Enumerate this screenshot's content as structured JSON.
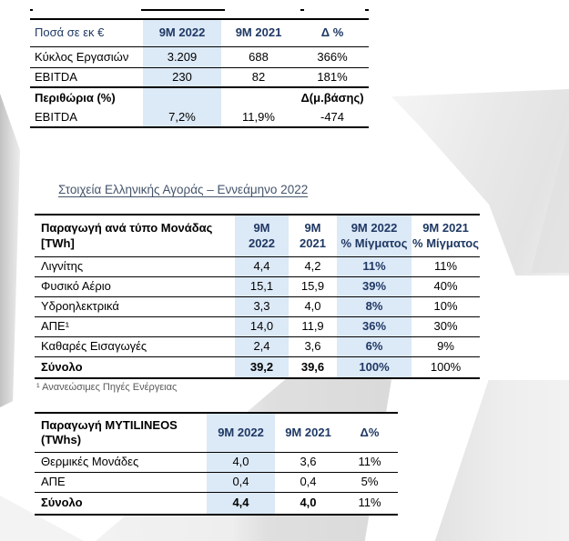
{
  "colors": {
    "accent_navy": "#1f3864",
    "light_blue_column": "#dce9f6",
    "heading_color": "#44546a",
    "border_black": "#000000"
  },
  "section_heading": "Στοιχεία Ελληνικής Αγοράς – Εννεάμηνο 2022",
  "footnote": "¹ Ανανεώσιμες Πηγές Ενέργειας",
  "financials_table": {
    "headers": [
      "Ποσά σε εκ €",
      "9M 2022",
      "9M 2021",
      "Δ %"
    ],
    "rows": [
      [
        "Κύκλος Εργασιών",
        "3.209",
        "688",
        "366%"
      ],
      [
        "EBITDA",
        "230",
        "82",
        "181%"
      ],
      [
        "Περιθώρια (%)",
        "",
        "",
        "Δ(μ.βάσης)"
      ],
      [
        "EBITDA",
        "7,2%",
        "11,9%",
        "-474"
      ]
    ]
  },
  "production_by_type_table": {
    "headers": [
      "Παραγωγή ανά τύπο Μονάδας [TWh]",
      "9M\n2022",
      "9M\n2021",
      "9M 2022\n% Μίγματος",
      "9M 2021\n% Μίγματος"
    ],
    "rows": [
      [
        "Λιγνίτης",
        "4,4",
        "4,2",
        "11%",
        "11%"
      ],
      [
        "Φυσικό Αέριο",
        "15,1",
        "15,9",
        "39%",
        "40%"
      ],
      [
        "Υδροηλεκτρικά",
        "3,3",
        "4,0",
        "8%",
        "10%"
      ],
      [
        "ΑΠΕ¹",
        "14,0",
        "11,9",
        "36%",
        "30%"
      ],
      [
        "Καθαρές Εισαγωγές",
        "2,4",
        "3,6",
        "6%",
        "9%"
      ],
      [
        "Σύνολο",
        "39,2",
        "39,6",
        "100%",
        "100%"
      ]
    ]
  },
  "mytilineos_production_table": {
    "headers": [
      "Παραγωγή MYTILINEOS (TWhs)",
      "9M 2022",
      "9M 2021",
      "Δ%"
    ],
    "rows": [
      [
        "Θερμικές Μονάδες",
        "4,0",
        "3,6",
        "11%"
      ],
      [
        "ΑΠΕ",
        "0,4",
        "0,4",
        "5%"
      ],
      [
        "Σύνολο",
        "4,4",
        "4,0",
        "11%"
      ]
    ]
  }
}
